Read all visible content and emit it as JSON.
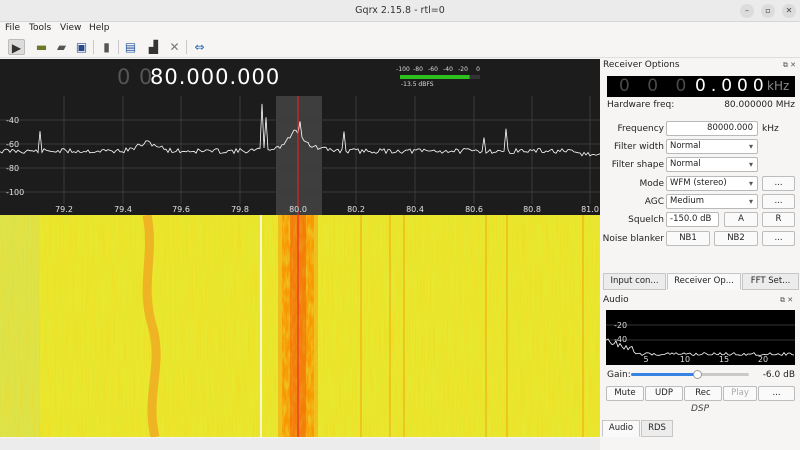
{
  "window": {
    "title": "Gqrx 2.15.8 - rtl=0",
    "controls": [
      "–",
      "▫",
      "✕"
    ]
  },
  "menu": [
    "File",
    "Tools",
    "View",
    "Help"
  ],
  "display": {
    "freq_dim": "0 0",
    "freq_main": "80.000.000",
    "y_ticks": [
      "-40",
      "-60",
      "-80",
      "-100"
    ],
    "x_ticks": [
      "79.2",
      "79.4",
      "79.6",
      "79.8",
      "80.0",
      "80.2",
      "80.4",
      "80.6",
      "80.8",
      "81.0"
    ],
    "meter_ticks": [
      "-100",
      "-80",
      "-60",
      "-40",
      "-20",
      "0"
    ],
    "meter_value": "-13.5 dBFS",
    "meter_level": 0.87
  },
  "receiver": {
    "title": "Receiver Options",
    "lcd_dim": "0 0 0",
    "lcd_main": "0.000",
    "lcd_unit": "kHz",
    "hw_label": "Hardware freq:",
    "hw_value": "80.000000 MHz",
    "frequency_label": "Frequency",
    "frequency_value": "80000.000",
    "frequency_unit": "kHz",
    "filter_width_label": "Filter width",
    "filter_width_value": "Normal",
    "filter_shape_label": "Filter shape",
    "filter_shape_value": "Normal",
    "mode_label": "Mode",
    "mode_value": "WFM (stereo)",
    "more": "...",
    "agc_label": "AGC",
    "agc_value": "Medium",
    "squelch_label": "Squelch",
    "squelch_value": "-150.0 dB",
    "squelch_a": "A",
    "squelch_r": "R",
    "nb_label": "Noise blanker",
    "nb1": "NB1",
    "nb2": "NB2"
  },
  "dock_tabs": [
    "Input con...",
    "Receiver Op...",
    "FFT Set..."
  ],
  "audio": {
    "title": "Audio",
    "y_ticks": [
      "-20",
      "-40"
    ],
    "x_ticks": [
      "5",
      "10",
      "15",
      "20"
    ],
    "gain_label": "Gain:",
    "gain_value": "-6.0 dB",
    "gain_level": 0.56,
    "buttons": [
      "Mute",
      "UDP",
      "Rec",
      "Play",
      "..."
    ],
    "dsp_label": "DSP"
  },
  "bottom_tabs": [
    "Audio",
    "RDS"
  ],
  "colors": {
    "trace": "#ffffff",
    "marker": "#ff2020",
    "waterfall_bg": "#e8e831",
    "signal": "#f07000"
  }
}
